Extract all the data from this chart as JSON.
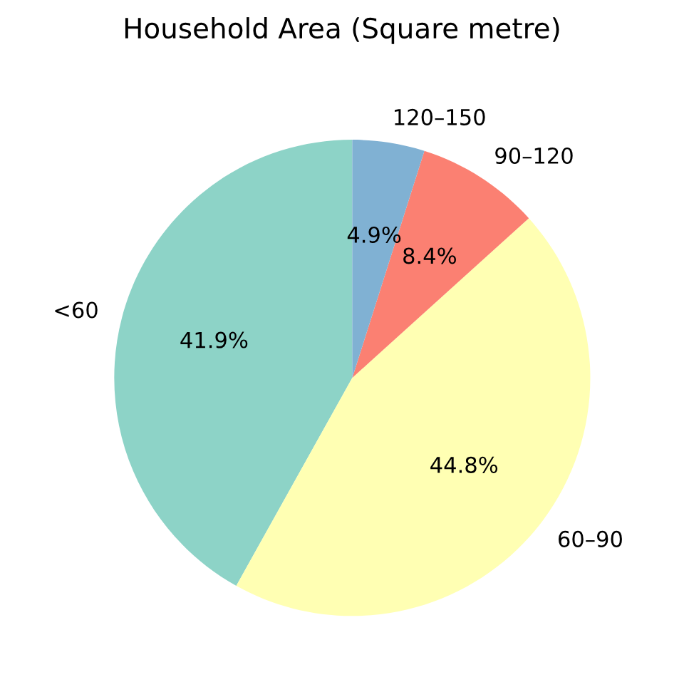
{
  "chart_data": {
    "type": "pie",
    "title": "Household Area (Square metre)",
    "categories": [
      "<60",
      "60–90",
      "90–120",
      "120–150"
    ],
    "values": [
      41.9,
      44.8,
      8.4,
      4.9
    ],
    "value_labels": [
      "41.9%",
      "44.8%",
      "8.4%",
      "4.9%"
    ],
    "colors": [
      "#8dd3c7",
      "#ffffb3",
      "#fb8072",
      "#80b1d3"
    ]
  }
}
